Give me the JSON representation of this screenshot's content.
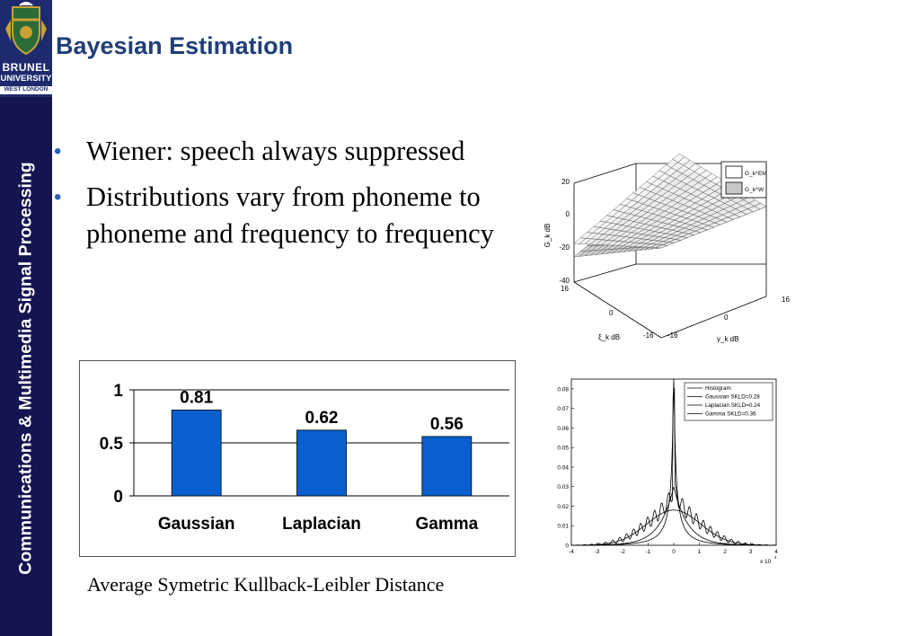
{
  "sidebar": {
    "university_line1": "BRUNEL",
    "university_line2": "UNIVERSITY",
    "university_line3": "WEST LONDON",
    "vertical_title": "Communications & Multimedia Signal Processing"
  },
  "slide": {
    "title": "Bayesian Estimation",
    "bullets": [
      "Wiener: speech always suppressed",
      "Distributions vary from phoneme to phoneme and frequency to frequency"
    ],
    "bullet_symbol": "•",
    "caption": "Average Symetric Kullback-Leibler Distance"
  },
  "colors": {
    "sidebar": "#141450",
    "title": "#1f3f78",
    "bar": "#0a5fd0"
  },
  "chart_data": [
    {
      "type": "bar",
      "categories": [
        "Gaussian",
        "Laplacian",
        "Gamma"
      ],
      "values": [
        0.81,
        0.62,
        0.56
      ],
      "data_labels": [
        "0.81",
        "0.62",
        "0.56"
      ],
      "yticks": [
        "0",
        "0.5",
        "1"
      ],
      "ylim": [
        0,
        1
      ],
      "grid": true
    },
    {
      "type": "surface",
      "zlabel": "G_k dB",
      "xlabel": "ξ_k dB",
      "ylabel": "γ_k dB",
      "zticks": [
        "20",
        "0",
        "-20",
        "-40"
      ],
      "xticks": [
        "16",
        "0",
        "-16"
      ],
      "yticks": [
        "-16",
        "0",
        "16"
      ],
      "legend": [
        "G_k^EM",
        "G_k^W"
      ]
    },
    {
      "type": "line",
      "yticks": [
        "0",
        "0.01",
        "0.02",
        "0.03",
        "0.04",
        "0.05",
        "0.06",
        "0.07",
        "0.08"
      ],
      "xticks": [
        "-4",
        "-3",
        "-2",
        "-1",
        "0",
        "1",
        "2",
        "3",
        "4"
      ],
      "x_multiplier": "x 10",
      "x_multiplier_exp": "4",
      "legend": [
        "Histogram",
        "Gaussian SKLD=0.28",
        "Laplacian SKLD=0.24",
        "Gamma SKLD=0.36"
      ]
    }
  ]
}
